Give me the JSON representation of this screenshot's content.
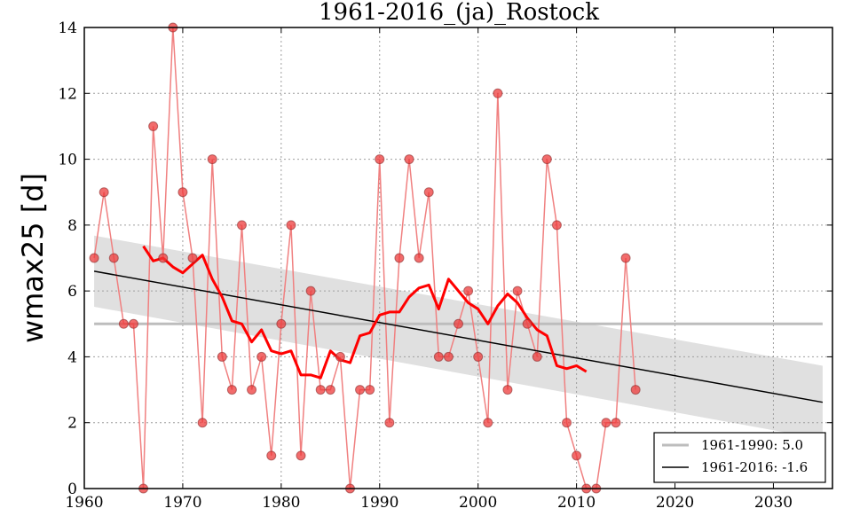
{
  "chart_data": {
    "type": "scatter",
    "title": "1961-2016_(ja)_Rostock",
    "xlabel": "",
    "ylabel": "wmax25 [d]",
    "xlim": [
      1960,
      2036
    ],
    "ylim": [
      0,
      14
    ],
    "xticks": [
      1960,
      1970,
      1980,
      1990,
      2000,
      2010,
      2020,
      2030
    ],
    "yticks": [
      0,
      2,
      4,
      6,
      8,
      10,
      12,
      14
    ],
    "grid": true,
    "legend_position": "bottom-right",
    "colors": {
      "points": "#ee3b3b",
      "points_line": "#f08080",
      "moving_average": "#ff0000",
      "trend": "#000000",
      "baseline": "#bdbdbd",
      "confidence_band": "#e0e0e0"
    },
    "series": [
      {
        "kind": "points",
        "x": [
          1961,
          1962,
          1963,
          1964,
          1965,
          1966,
          1967,
          1968,
          1969,
          1970,
          1971,
          1972,
          1973,
          1974,
          1975,
          1976,
          1977,
          1978,
          1979,
          1980,
          1981,
          1982,
          1983,
          1984,
          1985,
          1986,
          1987,
          1988,
          1989,
          1990,
          1991,
          1992,
          1993,
          1994,
          1995,
          1996,
          1997,
          1998,
          1999,
          2000,
          2001,
          2002,
          2003,
          2004,
          2005,
          2006,
          2007,
          2008,
          2009,
          2010,
          2011,
          2012,
          2013,
          2014,
          2015,
          2016
        ],
        "y": [
          7,
          9,
          7,
          5,
          5,
          0,
          11,
          7,
          14,
          9,
          7,
          2,
          10,
          4,
          3,
          8,
          3,
          4,
          1,
          5,
          8,
          1,
          6,
          3,
          3,
          4,
          0,
          3,
          3,
          10,
          2,
          7,
          10,
          7,
          9,
          4,
          4,
          5,
          6,
          4,
          2,
          12,
          3,
          6,
          5,
          4,
          10,
          8,
          2,
          1,
          0,
          0,
          2,
          2,
          7,
          3
        ]
      },
      {
        "kind": "moving_average",
        "x": [
          1966,
          1967,
          1968,
          1969,
          1970,
          1971,
          1972,
          1973,
          1974,
          1975,
          1976,
          1977,
          1978,
          1979,
          1980,
          1981,
          1982,
          1983,
          1984,
          1985,
          1986,
          1987,
          1988,
          1989,
          1990,
          1991,
          1992,
          1993,
          1994,
          1995,
          1996,
          1997,
          1998,
          1999,
          2000,
          2001,
          2002,
          2003,
          2004,
          2005,
          2006,
          2007,
          2008,
          2009,
          2010,
          2011
        ],
        "y": [
          7.36,
          6.91,
          7.0,
          6.73,
          6.55,
          6.82,
          7.09,
          6.36,
          5.82,
          5.09,
          5.0,
          4.45,
          4.82,
          4.18,
          4.09,
          4.18,
          3.45,
          3.45,
          3.36,
          4.18,
          3.91,
          3.82,
          4.64,
          4.73,
          5.27,
          5.36,
          5.36,
          5.82,
          6.09,
          6.18,
          5.45,
          6.36,
          6.0,
          5.64,
          5.45,
          5.0,
          5.55,
          5.91,
          5.64,
          5.18,
          4.82,
          4.64,
          3.73,
          3.64,
          3.73,
          3.55
        ]
      },
      {
        "name": "1961-1990: 5.0",
        "kind": "baseline",
        "x": [
          1961,
          2035
        ],
        "y": [
          5.0,
          5.0
        ]
      },
      {
        "name": "1961-2016: -1.6",
        "kind": "trend",
        "x": [
          1961,
          2035
        ],
        "y": [
          6.6,
          2.62
        ]
      }
    ],
    "confidence_band": {
      "x": [
        1961,
        2035
      ],
      "upper": [
        7.68,
        3.73
      ],
      "lower": [
        5.52,
        1.5
      ]
    }
  }
}
